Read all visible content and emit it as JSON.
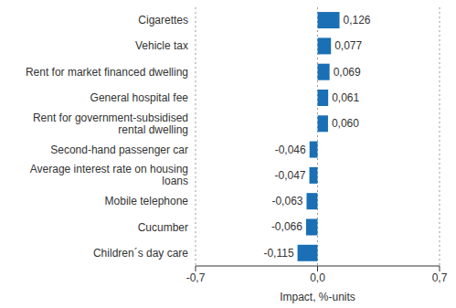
{
  "chart_data": {
    "type": "bar",
    "orientation": "horizontal",
    "x_label": "Impact, %-units",
    "categories": [
      "Cigarettes",
      "Vehicle tax",
      "Rent for market financed dwelling",
      "General hospital fee",
      "Rent for government-subsidised rental dwelling",
      "Second-hand passenger car",
      "Average interest rate on housing loans",
      "Mobile telephone",
      "Cucumber",
      "Children´s day care"
    ],
    "values": [
      0.126,
      0.077,
      0.069,
      0.061,
      0.06,
      -0.046,
      -0.047,
      -0.063,
      -0.066,
      -0.115
    ],
    "value_labels": [
      "0,126",
      "0,077",
      "0,069",
      "0,061",
      "0,060",
      "-0,046",
      "-0,047",
      "-0,063",
      "-0,066",
      "-0,115"
    ],
    "color": "#1a6fb5",
    "xlim": [
      -0.7,
      0.7
    ],
    "xticks": [
      {
        "value": -0.7,
        "label": "-0,7"
      },
      {
        "value": 0,
        "label": "0,0"
      },
      {
        "value": 0.7,
        "label": "0,7"
      }
    ],
    "grid": true,
    "data_labels": true
  }
}
